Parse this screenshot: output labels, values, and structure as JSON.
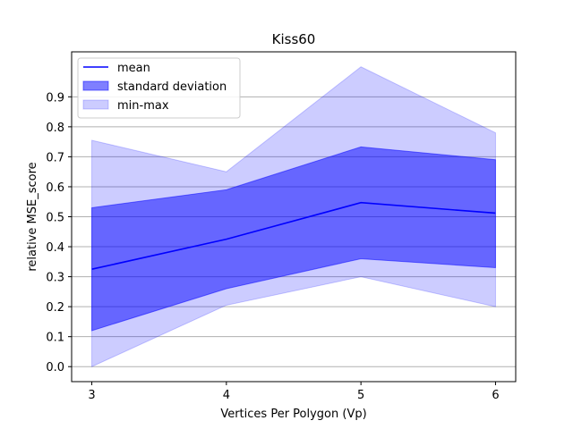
{
  "chart_data": {
    "type": "line",
    "title": "Kiss60",
    "xlabel": "Vertices Per Polygon (Vp)",
    "ylabel": "relative MSE_score",
    "x": [
      3,
      4,
      5,
      6
    ],
    "x_ticks": [
      "3",
      "4",
      "5",
      "6"
    ],
    "y_ticks": [
      "0.0",
      "0.1",
      "0.2",
      "0.3",
      "0.4",
      "0.5",
      "0.6",
      "0.7",
      "0.8",
      "0.9"
    ],
    "xlim": [
      2.85,
      6.15
    ],
    "ylim": [
      -0.05,
      1.05
    ],
    "grid": "horizontal",
    "legend_position": "top-left",
    "series": [
      {
        "name": "mean",
        "kind": "line",
        "color": "#0000ff",
        "values": [
          0.325,
          0.425,
          0.547,
          0.512
        ]
      },
      {
        "name": "standard deviation",
        "kind": "band",
        "color": "#0000ff",
        "opacity": 0.5,
        "lower": [
          0.12,
          0.26,
          0.36,
          0.33
        ],
        "upper": [
          0.53,
          0.59,
          0.733,
          0.69
        ]
      },
      {
        "name": "min-max",
        "kind": "band",
        "color": "#0000ff",
        "opacity": 0.2,
        "lower": [
          0.0,
          0.205,
          0.3,
          0.2
        ],
        "upper": [
          0.755,
          0.65,
          1.0,
          0.78
        ]
      }
    ]
  }
}
